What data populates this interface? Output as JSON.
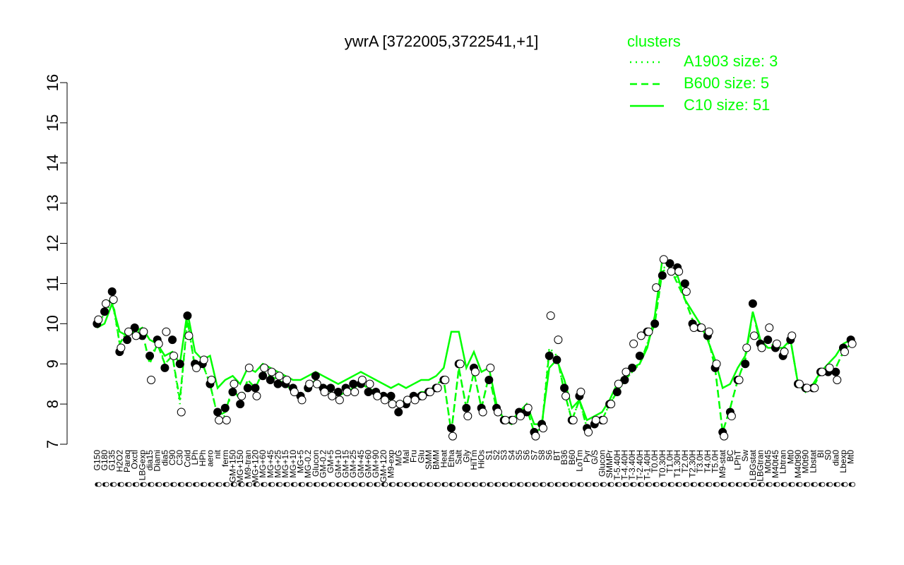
{
  "chart_data": {
    "type": "line",
    "title": "ywrA [3722005,3722541,+1]",
    "xlabel": "",
    "ylabel": "",
    "ylim": [
      7,
      16
    ],
    "yticks": [
      7,
      8,
      9,
      10,
      11,
      12,
      13,
      14,
      15,
      16
    ],
    "grid": false,
    "legend": {
      "title": "clusters",
      "placement": "top-right",
      "entries": [
        {
          "label": "A1903 size: 3",
          "style": "dotted"
        },
        {
          "label": "B600 size: 5",
          "style": "dashed"
        },
        {
          "label": "C10 size: 51",
          "style": "solid"
        }
      ]
    },
    "categories": [
      "G150",
      "G180",
      "G135",
      "H2O2",
      "Paraq",
      "Oxctl",
      "LBGexp",
      "dia15",
      "Diami",
      "dia5",
      "C90",
      "C30",
      "Cold",
      "LPh",
      "HPh",
      "aero",
      "nit",
      "ferm",
      "GM+150",
      "MG+150",
      "M9-tran",
      "MG+120",
      "MG+60",
      "MG+45",
      "MG+25",
      "MG+15",
      "MG+10",
      "MG+5",
      "MG-0.2",
      "Glucon",
      "GM-0.2",
      "GM+5",
      "GM+10",
      "GM+15",
      "GM+25",
      "GM+45",
      "GM+60",
      "GM+90",
      "GM+120",
      "M9-exp",
      "M/G",
      "Mal",
      "Fru",
      "Glu",
      "SMM",
      "BMM",
      "Heat",
      "Etha",
      "Salt",
      "Gly",
      "HiTm",
      "HiOs",
      "S1",
      "S2",
      "S3",
      "S4",
      "S5",
      "S6",
      "S7",
      "S8",
      "S6b",
      "BT",
      "B36",
      "B60",
      "LoTm",
      "Pyr",
      "G/S",
      "Glucon2",
      "SMMPr",
      "T-5.40H",
      "T-4.40H",
      "T-3.40H",
      "T-2.40H",
      "T-1.40H",
      "T0.0H",
      "T0.30H",
      "T1.0H",
      "T1.30H",
      "T2.0H",
      "T2.30H",
      "T3.0H",
      "T4.0H",
      "T5.0H",
      "M9-stat",
      "BC",
      "LPhT",
      "Sw",
      "LBGstat",
      "LBGtran",
      "M0t45",
      "M40t45",
      "Lbtran",
      "Mt0",
      "M40t90",
      "M0t90",
      "Lbstat",
      "BI",
      "S0",
      "dia0",
      "Lbexp",
      "Mt0b"
    ],
    "x_tick_labels": [
      "G150",
      "G180",
      "G135",
      "H2O2",
      "Paraq",
      "Oxctl",
      "LBGexp",
      "dia15",
      "Diami",
      "dia5",
      "C90",
      "C30",
      "Cold",
      "LPh",
      "HPh",
      "aero",
      "nit",
      "ferm",
      "GM+150",
      "MG+150",
      "M9-tran",
      "MG+120",
      "MG+60",
      "MG+45",
      "MG+25",
      "MG+15",
      "MG+10",
      "MG+5",
      "MG-0.2",
      "Glucon",
      "GM-0.2",
      "GM+5",
      "GM+10",
      "GM+15",
      "GM+25",
      "GM+45",
      "GM+60",
      "GM+90",
      "GM+120",
      "M9-exp",
      "M/G",
      "Mal",
      "Fru",
      "Glu",
      "SMM",
      "BMM",
      "Heat",
      "Etha",
      "Salt",
      "Gly",
      "HiTm",
      "HiOs",
      "S1",
      "S2",
      "S3",
      "S4",
      "S5",
      "S6",
      "S7",
      "S8",
      "S6",
      "BT",
      "B36",
      "B60",
      "LoTm",
      "Pyr",
      "G/S",
      "Glucon",
      "SMMPr",
      "T-5.40H",
      "T-4.40H",
      "T-3.40H",
      "T-2.40H",
      "T-1.40H",
      "T0.0H",
      "T0.30H",
      "T1.0H",
      "T1.30H",
      "T2.0H",
      "T2.30H",
      "T3.0H",
      "T4.0H",
      "T5.0H",
      "M9-stat",
      "BC",
      "LPhT",
      "Sw",
      "LBGstat",
      "LBGtran",
      "M0t45",
      "M40t45",
      "Lbtran",
      "Mt0",
      "M40t90",
      "M0t90",
      "Lbstat",
      "BI",
      "S0",
      "dia0",
      "Lbexp",
      "Mt0"
    ],
    "series": [
      {
        "name": "C10 size: 51",
        "style": "solid",
        "values": [
          9.9,
          10.0,
          10.5,
          9.8,
          9.7,
          9.8,
          9.9,
          9.6,
          9.5,
          9.2,
          9.3,
          9.0,
          10.3,
          9.3,
          9.1,
          9.2,
          8.4,
          8.6,
          8.7,
          8.5,
          8.9,
          8.8,
          9.0,
          8.9,
          8.8,
          8.7,
          8.6,
          8.6,
          8.7,
          8.8,
          8.7,
          8.6,
          8.5,
          8.6,
          8.7,
          8.8,
          8.7,
          8.6,
          8.5,
          8.4,
          8.5,
          8.4,
          8.5,
          8.6,
          8.6,
          8.7,
          8.9,
          9.8,
          9.8,
          8.9,
          9.3,
          8.8,
          8.9,
          8.0,
          7.6,
          7.5,
          7.8,
          8.0,
          7.5,
          7.5,
          8.9,
          9.1,
          8.6,
          7.9,
          8.1,
          7.6,
          7.7,
          7.8,
          8.1,
          8.5,
          8.7,
          8.9,
          9.0,
          9.4,
          10.2,
          11.6,
          11.4,
          11.2,
          10.6,
          10.3,
          10.0,
          9.6,
          9.1,
          8.4,
          8.5,
          8.9,
          9.2,
          10.3,
          9.6,
          9.4,
          9.4,
          9.4,
          9.6,
          8.5,
          8.3,
          8.5,
          8.8,
          9.0,
          9.2,
          9.5,
          9.6
        ]
      },
      {
        "name": "B600 size: 5",
        "style": "dashed",
        "values": [
          10.0,
          10.3,
          10.7,
          9.5,
          9.8,
          9.7,
          9.8,
          9.0,
          9.5,
          9.0,
          9.2,
          8.1,
          10.1,
          8.9,
          9.0,
          8.5,
          7.7,
          7.8,
          8.4,
          8.1,
          8.6,
          8.4,
          8.8,
          8.7,
          8.6,
          8.5,
          8.3,
          8.2,
          8.4,
          8.6,
          8.4,
          8.3,
          8.2,
          8.3,
          8.4,
          8.5,
          8.4,
          8.3,
          8.2,
          8.1,
          8.0,
          8.1,
          8.2,
          8.3,
          8.3,
          8.5,
          8.6,
          7.3,
          8.9,
          7.9,
          8.8,
          7.9,
          8.7,
          7.9,
          7.6,
          7.6,
          7.8,
          7.9,
          7.3,
          7.4,
          9.3,
          9.2,
          8.3,
          7.6,
          8.1,
          7.4,
          7.5,
          7.6,
          8.0,
          8.3,
          8.6,
          8.8,
          9.0,
          9.5,
          10.0,
          11.3,
          11.4,
          11.0,
          10.6,
          10.1,
          9.9,
          9.7,
          8.9,
          7.3,
          7.9,
          8.6,
          9.1,
          10.3,
          9.5,
          9.6,
          9.4,
          9.3,
          9.6,
          8.5,
          8.4,
          8.4,
          8.8,
          8.8,
          8.9,
          9.3,
          9.5
        ]
      },
      {
        "name": "A1903 size: 3",
        "style": "dotted",
        "values": [
          10.1,
          10.2,
          10.6,
          9.5,
          9.8,
          9.8,
          9.8,
          9.0,
          9.6,
          9.0,
          9.2,
          8.0,
          10.1,
          8.9,
          9.0,
          8.5,
          7.7,
          7.7,
          8.4,
          8.1,
          8.6,
          8.4,
          8.8,
          8.7,
          8.6,
          8.5,
          8.3,
          8.2,
          8.4,
          8.6,
          8.4,
          8.3,
          8.2,
          8.3,
          8.4,
          8.5,
          8.4,
          8.3,
          8.2,
          8.1,
          8.0,
          8.1,
          8.2,
          8.3,
          8.3,
          8.5,
          8.6,
          7.3,
          8.9,
          7.9,
          8.8,
          7.9,
          8.7,
          7.9,
          7.6,
          7.6,
          7.8,
          7.9,
          7.3,
          7.4,
          9.4,
          9.2,
          8.3,
          7.6,
          8.1,
          7.4,
          7.5,
          7.6,
          8.0,
          8.3,
          8.6,
          8.8,
          9.0,
          9.5,
          10.1,
          11.4,
          11.4,
          11.1,
          10.6,
          10.1,
          9.9,
          9.7,
          8.9,
          7.3,
          7.9,
          8.6,
          9.1,
          10.3,
          9.5,
          9.6,
          9.4,
          9.3,
          9.6,
          8.5,
          8.4,
          8.4,
          8.8,
          8.8,
          8.9,
          9.3,
          9.5
        ]
      }
    ],
    "points_filled": [
      10.0,
      10.3,
      10.8,
      9.3,
      9.6,
      9.9,
      9.7,
      9.2,
      9.6,
      8.9,
      9.6,
      9.0,
      10.2,
      9.0,
      9.0,
      8.5,
      7.8,
      7.9,
      8.3,
      8.0,
      8.4,
      8.4,
      8.7,
      8.6,
      8.5,
      8.5,
      8.4,
      8.2,
      8.4,
      8.7,
      8.4,
      8.4,
      8.3,
      8.4,
      8.5,
      8.5,
      8.3,
      8.3,
      8.2,
      8.2,
      7.8,
      8.0,
      8.2,
      8.2,
      8.3,
      8.4,
      8.6,
      7.4,
      9.0,
      7.9,
      8.9,
      7.9,
      8.6,
      7.9,
      7.6,
      7.6,
      7.8,
      7.8,
      7.3,
      7.5,
      9.2,
      9.1,
      8.4,
      7.6,
      8.2,
      7.4,
      7.5,
      7.6,
      8.0,
      8.3,
      8.6,
      8.9,
      9.2,
      9.8,
      10.0,
      11.2,
      11.5,
      11.4,
      11.0,
      10.0,
      9.9,
      9.7,
      8.9,
      7.3,
      7.8,
      8.6,
      9.0,
      10.5,
      9.5,
      9.6,
      9.4,
      9.2,
      9.6,
      8.5,
      8.4,
      8.4,
      8.8,
      8.8,
      8.8,
      9.4,
      9.6
    ],
    "points_open": [
      10.1,
      10.5,
      10.6,
      9.4,
      9.8,
      9.7,
      9.8,
      8.6,
      9.5,
      9.8,
      9.2,
      7.8,
      9.7,
      8.9,
      9.1,
      8.6,
      7.6,
      7.6,
      8.5,
      8.2,
      8.9,
      8.2,
      8.9,
      8.8,
      8.7,
      8.6,
      8.3,
      8.1,
      8.5,
      8.5,
      8.3,
      8.2,
      8.1,
      8.3,
      8.3,
      8.6,
      8.5,
      8.2,
      8.1,
      8.0,
      8.0,
      8.1,
      8.1,
      8.2,
      8.3,
      8.4,
      8.6,
      7.2,
      9.0,
      7.7,
      8.8,
      7.8,
      8.9,
      7.8,
      7.6,
      7.6,
      7.7,
      7.9,
      7.2,
      7.4,
      10.2,
      9.6,
      8.2,
      7.6,
      8.3,
      7.3,
      7.6,
      7.6,
      8.0,
      8.5,
      8.8,
      9.5,
      9.7,
      9.8,
      10.9,
      11.6,
      11.3,
      11.3,
      10.8,
      9.9,
      9.9,
      9.8,
      9.0,
      7.2,
      7.7,
      8.6,
      9.4,
      9.7,
      9.4,
      9.9,
      9.5,
      9.3,
      9.7,
      8.5,
      8.4,
      8.4,
      8.8,
      8.9,
      8.6,
      9.3,
      9.5
    ]
  },
  "colors": {
    "series": "#00ff00",
    "legend_text": "#00ff00",
    "axis": "#000000"
  }
}
